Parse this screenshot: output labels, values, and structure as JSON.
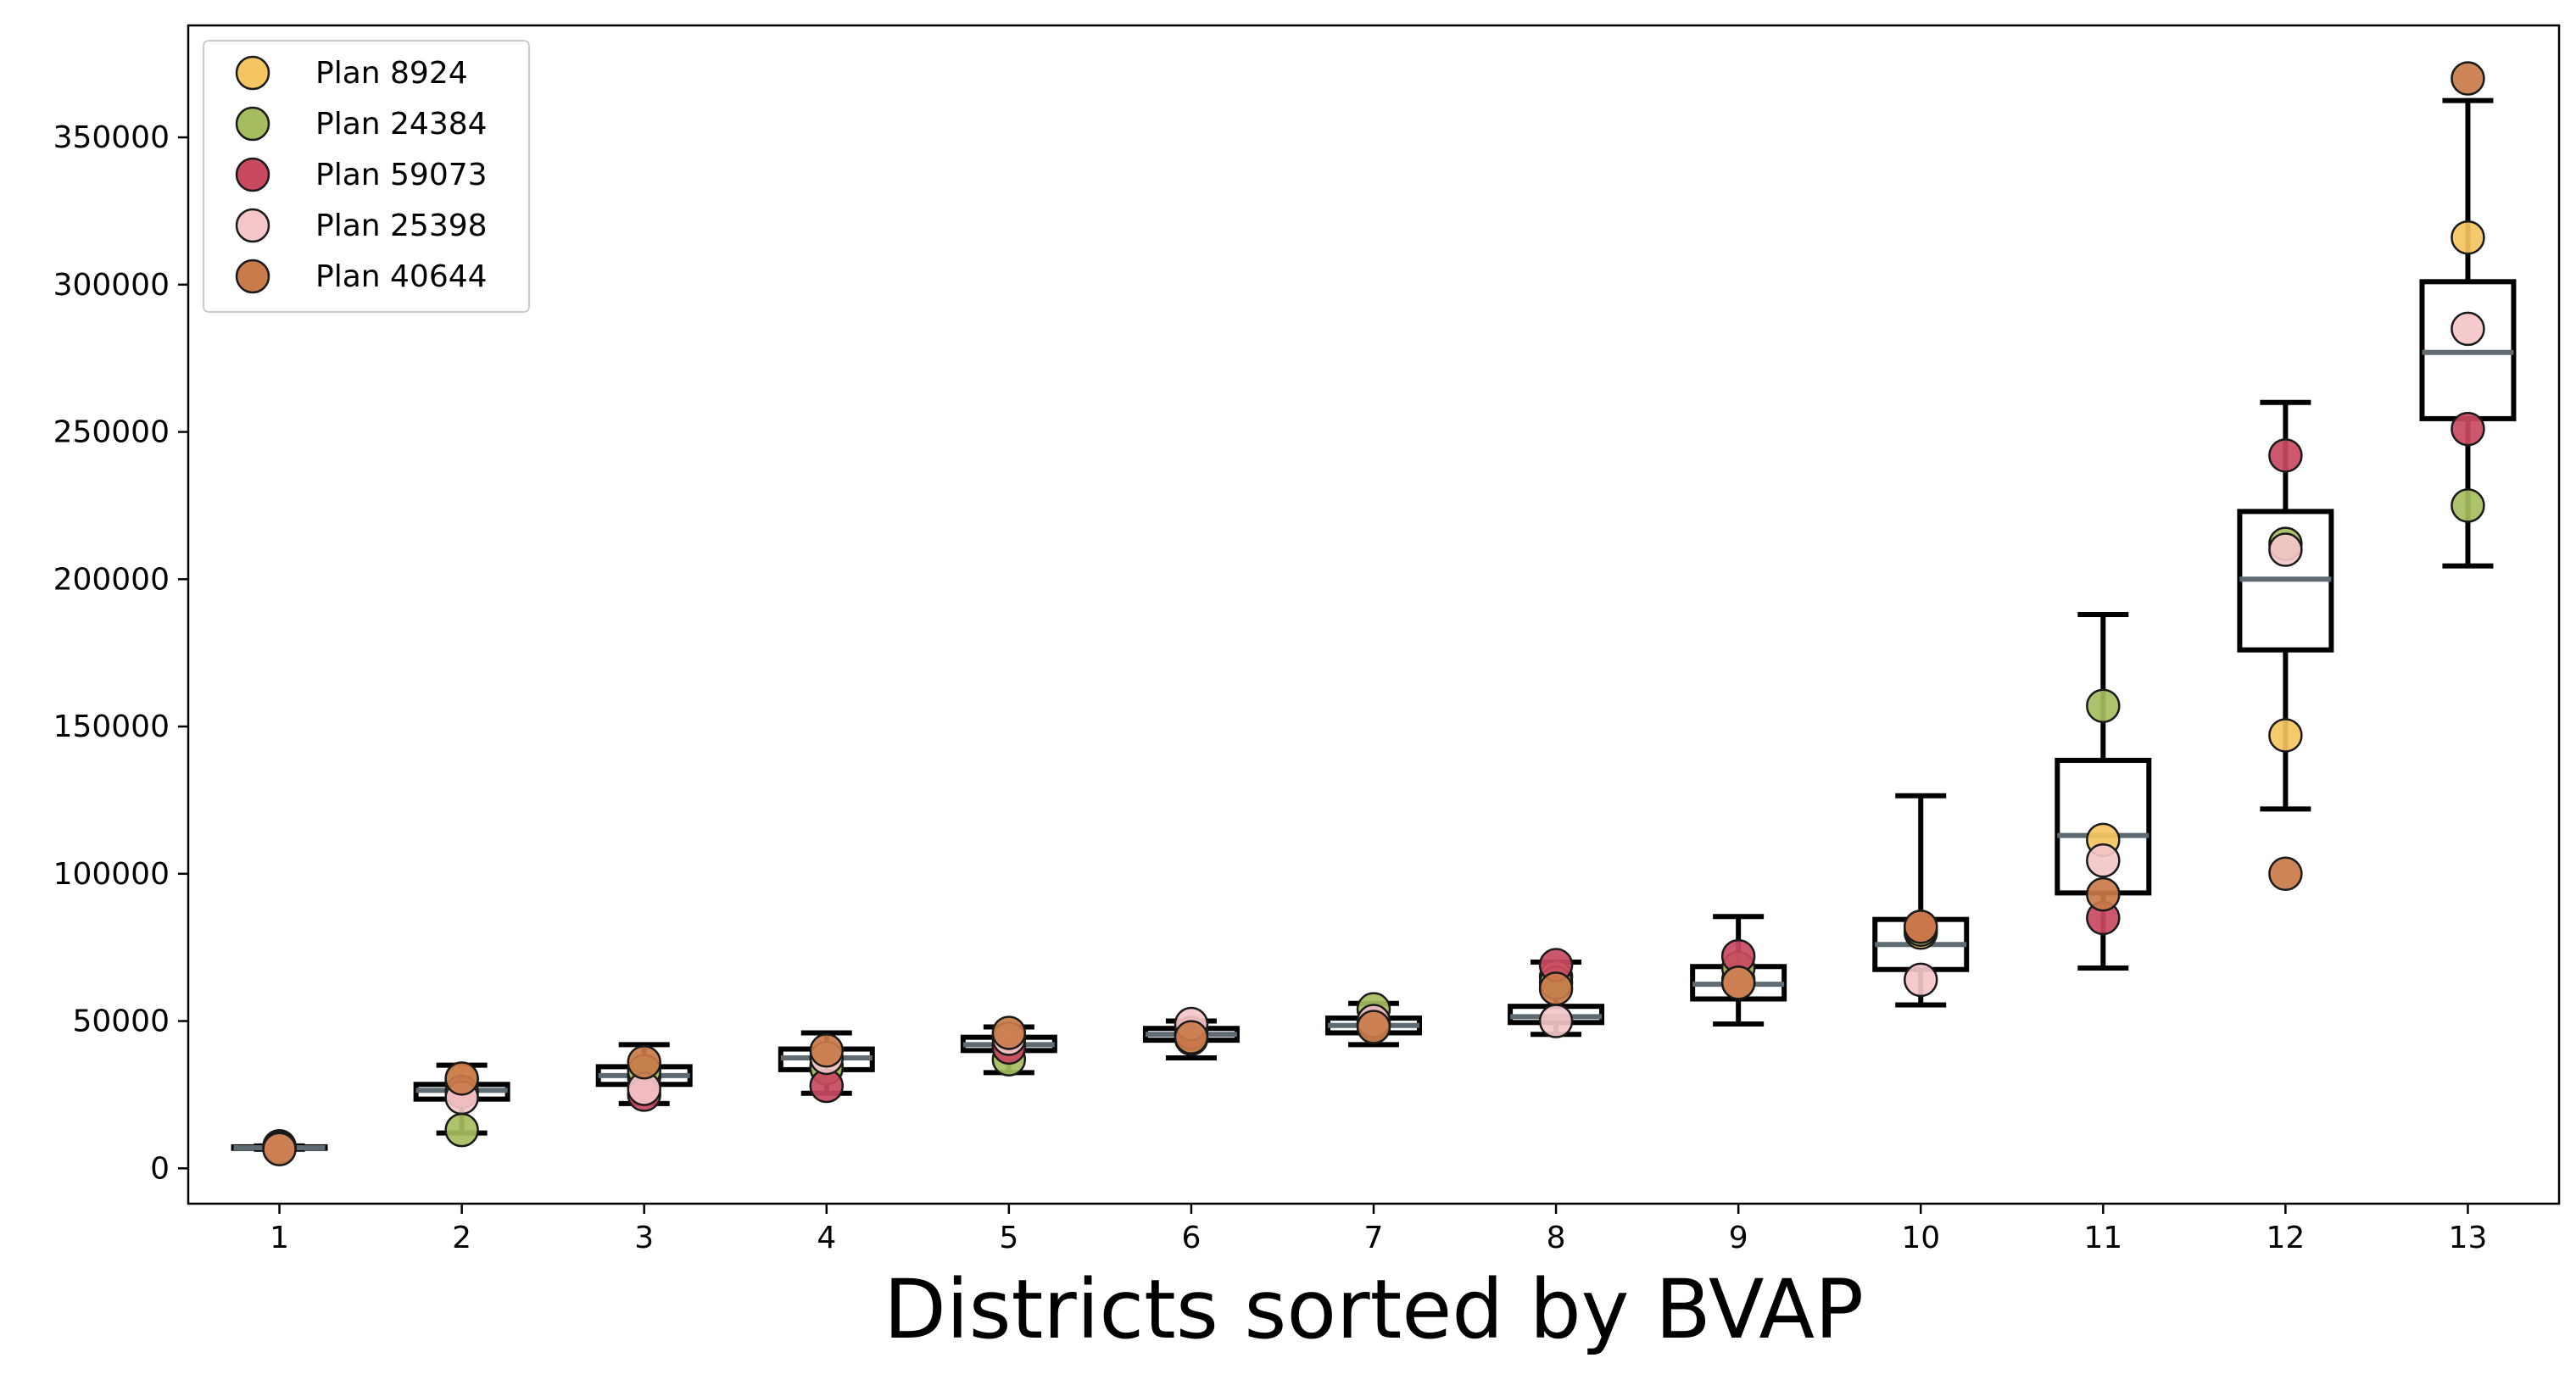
{
  "chart_data": {
    "type": "box",
    "title": "",
    "xlabel": "Districts sorted by BVAP",
    "ylabel": "",
    "categories": [
      "1",
      "2",
      "3",
      "4",
      "5",
      "6",
      "7",
      "8",
      "9",
      "10",
      "11",
      "12",
      "13"
    ],
    "ylim": [
      -12000,
      388000
    ],
    "xlim": [
      0.5,
      13.5
    ],
    "yticks": [
      0,
      50000,
      100000,
      150000,
      200000,
      250000,
      300000,
      350000
    ],
    "ytick_labels": [
      "0",
      "50000",
      "100000",
      "150000",
      "200000",
      "250000",
      "300000",
      "350000"
    ],
    "grid": false,
    "legend_position": "top-left",
    "box_color": "#000000",
    "median_color": "#5f6b73",
    "boxes": [
      {
        "district": "1",
        "whislo": 6500,
        "q1": 6800,
        "med": 7000,
        "q3": 7300,
        "whishi": 7600
      },
      {
        "district": "2",
        "whislo": 12000,
        "q1": 23500,
        "med": 26500,
        "q3": 28500,
        "whishi": 35000
      },
      {
        "district": "3",
        "whislo": 22000,
        "q1": 28500,
        "med": 31500,
        "q3": 34500,
        "whishi": 42000
      },
      {
        "district": "4",
        "whislo": 25500,
        "q1": 33500,
        "med": 37500,
        "q3": 40500,
        "whishi": 46000
      },
      {
        "district": "5",
        "whislo": 32500,
        "q1": 40000,
        "med": 42000,
        "q3": 44500,
        "whishi": 48000
      },
      {
        "district": "6",
        "whislo": 37500,
        "q1": 43500,
        "med": 45500,
        "q3": 47500,
        "whishi": 50000
      },
      {
        "district": "7",
        "whislo": 42000,
        "q1": 46000,
        "med": 48500,
        "q3": 51000,
        "whishi": 56000
      },
      {
        "district": "8",
        "whislo": 45500,
        "q1": 49500,
        "med": 51500,
        "q3": 55000,
        "whishi": 70000
      },
      {
        "district": "9",
        "whislo": 49000,
        "q1": 57500,
        "med": 62500,
        "q3": 68500,
        "whishi": 85500
      },
      {
        "district": "10",
        "whislo": 55500,
        "q1": 67500,
        "med": 76000,
        "q3": 84500,
        "whishi": 126500
      },
      {
        "district": "11",
        "whislo": 68000,
        "q1": 93500,
        "med": 113000,
        "q3": 138500,
        "whishi": 188000
      },
      {
        "district": "12",
        "whislo": 122000,
        "q1": 176000,
        "med": 200000,
        "q3": 223000,
        "whishi": 260000
      },
      {
        "district": "13",
        "whislo": 204500,
        "q1": 254500,
        "med": 277000,
        "q3": 301000,
        "whishi": 362500
      }
    ],
    "series": [
      {
        "name": "Plan 8924",
        "color": "#f5c660",
        "values": [
          7000,
          30000,
          31000,
          35000,
          42000,
          45500,
          48500,
          65000,
          64000,
          80000,
          111500,
          147000,
          316000
        ]
      },
      {
        "name": "Plan 24384",
        "color": "#a5bd5e",
        "values": [
          7000,
          13000,
          33000,
          34000,
          37000,
          44000,
          54000,
          63000,
          68000,
          81000,
          157000,
          212000,
          225000
        ]
      },
      {
        "name": "Plan 59073",
        "color": "#c9495f",
        "values": [
          7500,
          26000,
          25000,
          28000,
          41000,
          46000,
          49000,
          69000,
          72000,
          82000,
          85000,
          242000,
          251000
        ]
      },
      {
        "name": "Plan 25398",
        "color": "#f4c6c8",
        "values": [
          7000,
          24000,
          27000,
          37500,
          44000,
          49000,
          50000,
          50000,
          63000,
          64000,
          104500,
          210000,
          285000
        ]
      },
      {
        "name": "Plan 40644",
        "color": "#c97b4a",
        "values": [
          6500,
          30500,
          36000,
          40000,
          46000,
          44500,
          48000,
          61000,
          63000,
          82000,
          93000,
          100000,
          370000
        ]
      }
    ]
  }
}
